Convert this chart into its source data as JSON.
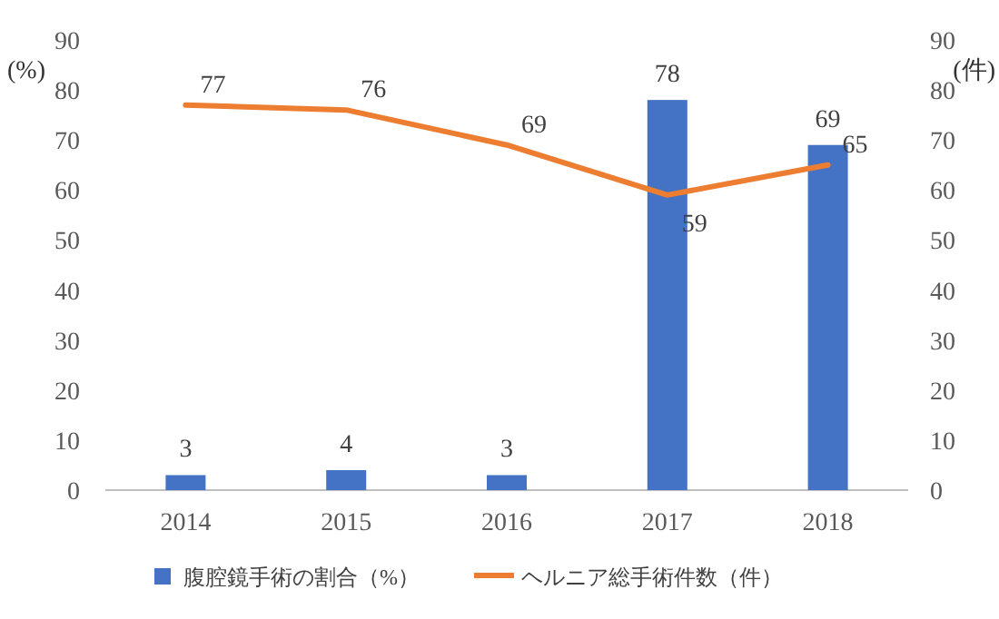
{
  "chart_data": {
    "type": "bar",
    "categories": [
      "2014",
      "2015",
      "2016",
      "2017",
      "2018"
    ],
    "series": [
      {
        "name": "腹腔鏡手術の割合（%）",
        "color": "#4472c4",
        "values": [
          3,
          4,
          3,
          78,
          69
        ]
      },
      {
        "name": "ヘルニア総手術件数（件）",
        "type": "line",
        "axis": "y2",
        "color": "#ed7d31",
        "values": [
          77,
          76,
          69,
          59,
          65
        ]
      }
    ],
    "ylim": [
      0,
      90
    ],
    "yticks": [
      0,
      10,
      20,
      30,
      40,
      50,
      60,
      70,
      80,
      90
    ],
    "y2lim": [
      0,
      90
    ],
    "y2ticks": [
      0,
      10,
      20,
      30,
      40,
      50,
      60,
      70,
      80,
      90
    ],
    "ylabel": "(%)",
    "y2label": "(件)",
    "data_labels": true,
    "legend": "bottom",
    "grid": false
  }
}
